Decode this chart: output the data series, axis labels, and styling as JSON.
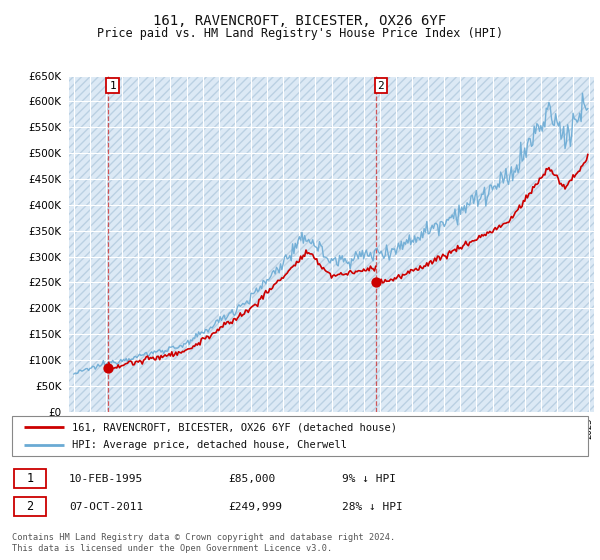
{
  "title": "161, RAVENCROFT, BICESTER, OX26 6YF",
  "subtitle": "Price paid vs. HM Land Registry's House Price Index (HPI)",
  "ylim": [
    0,
    650000
  ],
  "yticks": [
    0,
    50000,
    100000,
    150000,
    200000,
    250000,
    300000,
    350000,
    400000,
    450000,
    500000,
    550000,
    600000,
    650000
  ],
  "xlim_start": 1992.7,
  "xlim_end": 2025.3,
  "bg_color": "#dce9f5",
  "hpi_color": "#6aaad4",
  "price_color": "#cc0000",
  "sale1_year": 1995.11,
  "sale1_price": 85000,
  "sale2_year": 2011.77,
  "sale2_price": 249999,
  "legend_label1": "161, RAVENCROFT, BICESTER, OX26 6YF (detached house)",
  "legend_label2": "HPI: Average price, detached house, Cherwell",
  "note1_label": "1",
  "note1_date": "10-FEB-1995",
  "note1_price": "£85,000",
  "note1_hpi": "9% ↓ HPI",
  "note2_label": "2",
  "note2_date": "07-OCT-2011",
  "note2_price": "£249,999",
  "note2_hpi": "28% ↓ HPI",
  "footer": "Contains HM Land Registry data © Crown copyright and database right 2024.\nThis data is licensed under the Open Government Licence v3.0."
}
